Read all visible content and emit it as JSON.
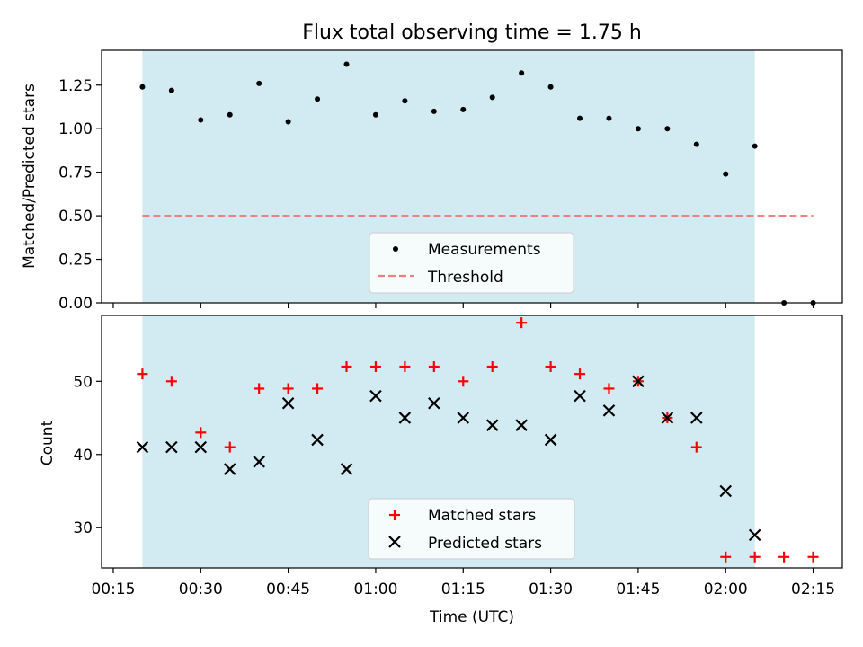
{
  "figure": {
    "title": "Flux total observing time = 1.75 h",
    "xlabel": "Time (UTC)",
    "x_tick_labels": [
      "00:15",
      "00:30",
      "00:45",
      "01:00",
      "01:15",
      "01:30",
      "01:45",
      "02:00",
      "02:15"
    ]
  },
  "colors": {
    "shade": "#add8e6",
    "threshold": "#f08080",
    "matched": "#ff0000",
    "predicted": "#000000",
    "measurement": "#000000"
  },
  "chart_data": [
    {
      "type": "scatter",
      "panel": "top",
      "ylabel": "Matched/Predicted stars",
      "ylim": [
        0,
        1.45
      ],
      "xlim": [
        "00:13",
        "02:20"
      ],
      "y_tick_labels": [
        "0.00",
        "0.25",
        "0.50",
        "0.75",
        "1.00",
        "1.25"
      ],
      "shaded_span": [
        "00:20",
        "02:05"
      ],
      "threshold": {
        "name": "Threshold",
        "value": 0.5,
        "x_range": [
          "00:20",
          "02:15"
        ]
      },
      "legend": {
        "position": "lower-center",
        "entries": [
          "Measurements",
          "Threshold"
        ]
      },
      "series": [
        {
          "name": "Measurements",
          "x": [
            "00:20",
            "00:25",
            "00:30",
            "00:35",
            "00:40",
            "00:45",
            "00:50",
            "00:55",
            "01:00",
            "01:05",
            "01:10",
            "01:15",
            "01:20",
            "01:25",
            "01:30",
            "01:35",
            "01:40",
            "01:45",
            "01:50",
            "01:55",
            "02:00",
            "02:05",
            "02:10",
            "02:15"
          ],
          "values": [
            1.24,
            1.22,
            1.05,
            1.08,
            1.26,
            1.04,
            1.17,
            1.37,
            1.08,
            1.16,
            1.1,
            1.11,
            1.18,
            1.32,
            1.24,
            1.06,
            1.06,
            1.0,
            1.0,
            0.91,
            0.74,
            0.9,
            0.0,
            0.0
          ]
        }
      ]
    },
    {
      "type": "scatter",
      "panel": "bottom",
      "ylabel": "Count",
      "ylim": [
        24.5,
        59
      ],
      "xlim": [
        "00:13",
        "02:20"
      ],
      "y_tick_labels": [
        "30",
        "40",
        "50"
      ],
      "shaded_span": [
        "00:20",
        "02:05"
      ],
      "legend": {
        "position": "lower-center",
        "entries": [
          "Matched stars",
          "Predicted stars"
        ]
      },
      "series": [
        {
          "name": "Matched stars",
          "marker": "plus",
          "x": [
            "00:20",
            "00:25",
            "00:30",
            "00:35",
            "00:40",
            "00:45",
            "00:50",
            "00:55",
            "01:00",
            "01:05",
            "01:10",
            "01:15",
            "01:20",
            "01:25",
            "01:30",
            "01:35",
            "01:40",
            "01:45",
            "01:50",
            "01:55",
            "02:00",
            "02:05",
            "02:10",
            "02:15"
          ],
          "values": [
            51,
            50,
            43,
            41,
            49,
            49,
            49,
            52,
            52,
            52,
            52,
            50,
            52,
            58,
            52,
            51,
            49,
            50,
            45,
            41,
            26,
            26,
            26,
            26
          ]
        },
        {
          "name": "Predicted stars",
          "marker": "x",
          "x": [
            "00:20",
            "00:25",
            "00:30",
            "00:35",
            "00:40",
            "00:45",
            "00:50",
            "00:55",
            "01:00",
            "01:05",
            "01:10",
            "01:15",
            "01:20",
            "01:25",
            "01:30",
            "01:35",
            "01:40",
            "01:45",
            "01:50",
            "01:55",
            "02:00",
            "02:05"
          ],
          "values": [
            41,
            41,
            41,
            38,
            39,
            47,
            42,
            38,
            48,
            45,
            47,
            45,
            44,
            44,
            42,
            48,
            46,
            50,
            45,
            45,
            35,
            29
          ]
        }
      ]
    }
  ]
}
